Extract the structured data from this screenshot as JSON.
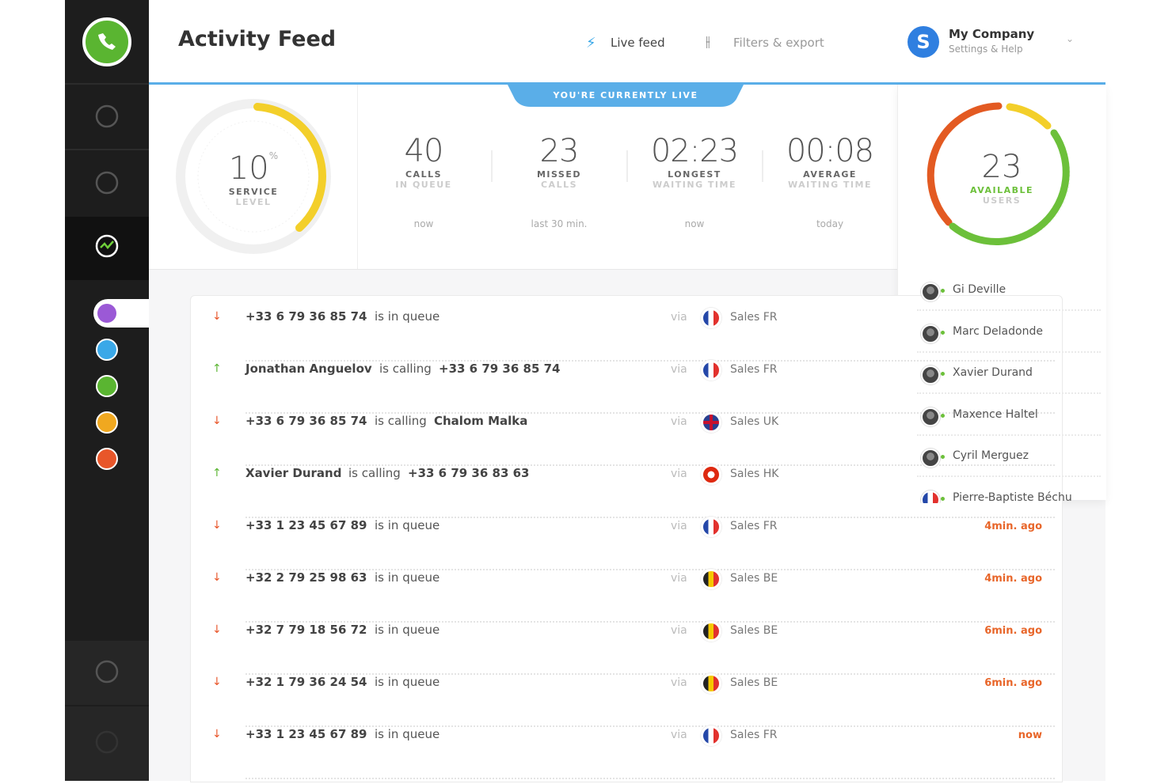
{
  "header": {
    "title": "Activity Feed",
    "nav": [
      "Live feed",
      "Filters & export"
    ],
    "avatar": "S",
    "company": "My Company",
    "company_sub": "Settings & Help"
  },
  "banner": "YOU'RE CURRENTLY LIVE",
  "service": {
    "value": "10",
    "unit": "%",
    "label": "SERVICE",
    "label2": "LEVEL"
  },
  "stats": [
    {
      "value": "40",
      "label": "CALLS",
      "label2": "IN QUEUE",
      "period": "now"
    },
    {
      "value": "23",
      "label": "MISSED",
      "label2": "CALLS",
      "period": "last 30 min."
    },
    {
      "value": "02:23",
      "label": "LONGEST",
      "label2": "WAITING TIME",
      "period": "now"
    },
    {
      "value": "00:08",
      "label": "AVERAGE",
      "label2": "WAITING TIME",
      "period": "today"
    }
  ],
  "available": {
    "value": "23",
    "label": "AVAILABLE",
    "label2": "USERS"
  },
  "users": [
    "Gi Deville",
    "Marc Deladonde",
    "Xavier Durand",
    "Maxence Haltel",
    "Cyril Merguez",
    "Pierre-Baptiste Béchu"
  ],
  "feed": [
    {
      "from": "+33 6 79 36 85 74",
      "action": "is in queue",
      "via": "via",
      "team": "Sales FR"
    },
    {
      "from": "Jonathan Anguelov",
      "action": "is calling",
      "to": "+33 6 79 36 85 74",
      "via": "via",
      "team": "Sales FR"
    },
    {
      "from": "+33 6 79 36 85 74",
      "action": "is calling",
      "to": "Chalom Malka",
      "via": "via",
      "team": "Sales UK"
    },
    {
      "from": "Xavier Durand",
      "action": "is calling",
      "to": "+33 6 79 36 83 63",
      "via": "via",
      "team": "Sales HK"
    },
    {
      "from": "+33 1 23 45 67 89",
      "action": "is in queue",
      "via": "via",
      "team": "Sales FR",
      "time": "4min. ago"
    },
    {
      "from": "+32 2 79 25 98 63",
      "action": "is in queue",
      "via": "via",
      "team": "Sales BE",
      "time": "4min. ago"
    },
    {
      "from": "+32 7 79 18 56 72",
      "action": "is in queue",
      "via": "via",
      "team": "Sales BE",
      "time": "6min. ago"
    },
    {
      "from": "+32 1 79 36 24 54",
      "action": "is in queue",
      "via": "via",
      "team": "Sales BE",
      "time": "6min. ago"
    },
    {
      "from": "+33 1 23 45 67 89",
      "action": "is in queue",
      "via": "via",
      "team": "Sales FR",
      "time": "now"
    }
  ]
}
